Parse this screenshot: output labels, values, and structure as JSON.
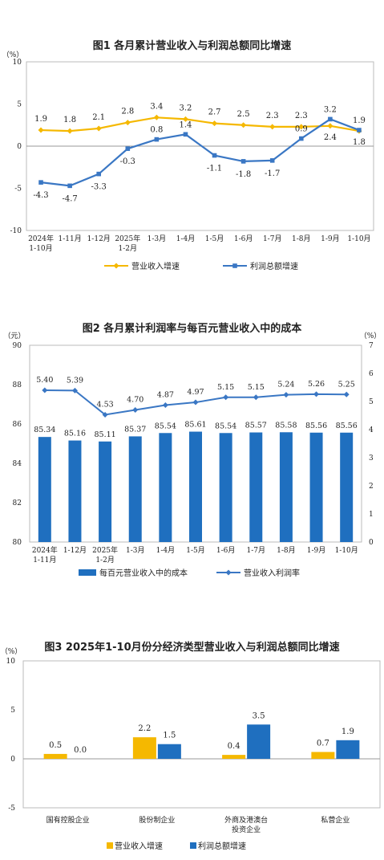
{
  "chart_data": [
    {
      "type": "line",
      "title": "图1  各月累计营业收入与利润总额同比增速",
      "ylabel": "（%）",
      "ylim": [
        -10,
        10
      ],
      "yticks": [
        "10",
        "5",
        "0",
        "-5",
        "-10"
      ],
      "categories": [
        [
          "2024年",
          "1-10月"
        ],
        [
          "1-11月"
        ],
        [
          "1-12月"
        ],
        [
          "2025年",
          "1-2月"
        ],
        [
          "1-3月"
        ],
        [
          "1-4月"
        ],
        [
          "1-5月"
        ],
        [
          "1-6月"
        ],
        [
          "1-7月"
        ],
        [
          "1-8月"
        ],
        [
          "1-9月"
        ],
        [
          "1-10月"
        ]
      ],
      "series": [
        {
          "name": "营业收入增速",
          "color": "#f5b800",
          "marker": "diamond",
          "values": [
            1.9,
            1.8,
            2.1,
            2.8,
            3.4,
            3.2,
            2.7,
            2.5,
            2.3,
            2.3,
            2.4,
            1.8
          ],
          "labels": [
            "1.9",
            "1.8",
            "2.1",
            "2.8",
            "3.4",
            "3.2",
            "2.7",
            "2.5",
            "2.3",
            "2.3",
            "2.4",
            "1.8"
          ]
        },
        {
          "name": "利润总额增速",
          "color": "#3a77c4",
          "marker": "square",
          "values": [
            -4.3,
            -4.7,
            -3.3,
            -0.3,
            0.8,
            1.4,
            -1.1,
            -1.8,
            -1.7,
            0.9,
            3.2,
            1.9
          ],
          "labels": [
            "-4.3",
            "-4.7",
            "-3.3",
            "-0.3",
            "0.8",
            "1.4",
            "-1.1",
            "-1.8",
            "-1.7",
            "0.9",
            "3.2",
            "1.9"
          ]
        }
      ],
      "grid": false,
      "legend_position": "bottom"
    },
    {
      "type": "bar",
      "title": "图2  各月累计利润率与每百元营业收入中的成本",
      "ylabel": "（元）",
      "y2label": "（%）",
      "ylim": [
        80,
        90
      ],
      "y2lim": [
        0,
        7
      ],
      "yticks": [
        "90",
        "88",
        "86",
        "84",
        "82",
        "80"
      ],
      "y2ticks": [
        "7",
        "6",
        "5",
        "4",
        "3",
        "2",
        "1",
        "0"
      ],
      "categories": [
        [
          "2024年",
          "1-11月"
        ],
        [
          "1-12月"
        ],
        [
          "2025年",
          "1-2月"
        ],
        [
          "1-3月"
        ],
        [
          "1-4月"
        ],
        [
          "1-5月"
        ],
        [
          "1-6月"
        ],
        [
          "1-7月"
        ],
        [
          "1-8月"
        ],
        [
          "1-9月"
        ],
        [
          "1-10月"
        ]
      ],
      "series": [
        {
          "name": "每百元营业收入中的成本",
          "type": "bar",
          "axis": "left",
          "color": "#1f6fbf",
          "values": [
            85.34,
            85.16,
            85.11,
            85.37,
            85.54,
            85.61,
            85.54,
            85.57,
            85.58,
            85.56,
            85.56
          ],
          "labels": [
            "85.34",
            "85.16",
            "85.11",
            "85.37",
            "85.54",
            "85.61",
            "85.54",
            "85.57",
            "85.58",
            "85.56",
            "85.56"
          ]
        },
        {
          "name": "营业收入利润率",
          "type": "line",
          "axis": "right",
          "color": "#3a77c4",
          "marker": "diamond",
          "values": [
            5.4,
            5.39,
            4.53,
            4.7,
            4.87,
            4.97,
            5.15,
            5.15,
            5.24,
            5.26,
            5.25
          ],
          "labels": [
            "5.40",
            "5.39",
            "4.53",
            "4.70",
            "4.87",
            "4.97",
            "5.15",
            "5.15",
            "5.24",
            "5.26",
            "5.25"
          ]
        }
      ],
      "grid": false,
      "legend_position": "bottom"
    },
    {
      "type": "bar",
      "title": "图3  2025年1-10月份分经济类型营业收入与利润总额同比增速",
      "ylabel": "（%）",
      "ylim": [
        -5,
        10
      ],
      "yticks": [
        "10",
        "5",
        "0",
        "-5"
      ],
      "categories": [
        [
          "国有控股企业"
        ],
        [
          "股份制企业"
        ],
        [
          "外商及港澳台",
          "投资企业"
        ],
        [
          "私营企业"
        ]
      ],
      "series": [
        {
          "name": "营业收入增速",
          "color": "#f5b800",
          "values": [
            0.5,
            2.2,
            0.4,
            0.7
          ],
          "labels": [
            "0.5",
            "2.2",
            "0.4",
            "0.7"
          ]
        },
        {
          "name": "利润总额增速",
          "color": "#1f6fbf",
          "values": [
            0.0,
            1.5,
            3.5,
            1.9
          ],
          "labels": [
            "0.0",
            "1.5",
            "3.5",
            "1.9"
          ]
        }
      ],
      "grid": false,
      "legend_position": "bottom"
    }
  ]
}
